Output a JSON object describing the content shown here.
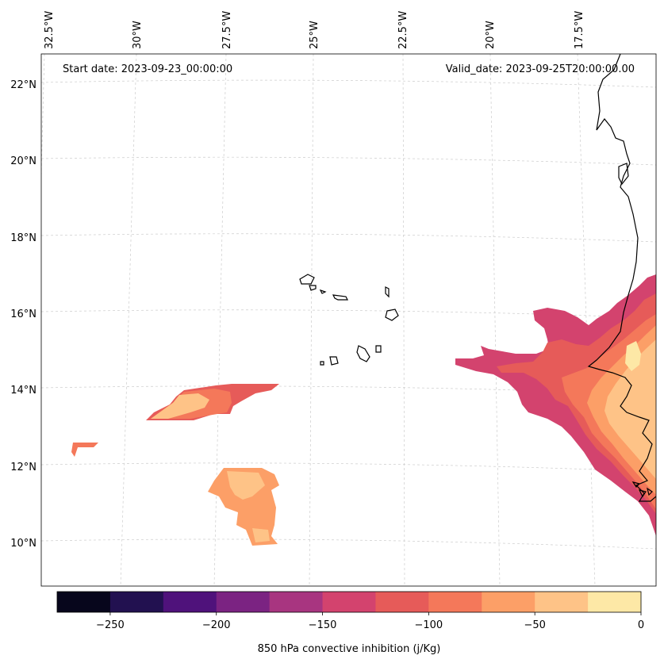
{
  "chart_data": {
    "type": "map",
    "projection": "conic",
    "start_date_label": "Start date: 2023-09-23_00:00:00",
    "valid_date_label": "Valid_date: 2023-09-25T20:00:00.00",
    "lon_labels": [
      "32.5°W",
      "30°W",
      "27.5°W",
      "25°W",
      "22.5°W",
      "20°W",
      "17.5°W"
    ],
    "lat_labels": [
      "22°N",
      "20°N",
      "18°N",
      "16°N",
      "14°N",
      "12°N",
      "10°N"
    ],
    "colorbar": {
      "label": "850 hPa convective inhibition (j/Kg)",
      "tick_labels": [
        "−250",
        "−200",
        "−150",
        "−100",
        "−50",
        "0"
      ],
      "levels": [
        -275,
        -250,
        -225,
        -200,
        -175,
        -150,
        -125,
        -100,
        -75,
        -50,
        -25,
        0
      ],
      "colors": [
        "#07061c",
        "#221150",
        "#4f127b",
        "#7b2382",
        "#a83580",
        "#d3436e",
        "#e65b59",
        "#f4785a",
        "#fc9f67",
        "#fec387",
        "#fde8a6"
      ]
    }
  }
}
